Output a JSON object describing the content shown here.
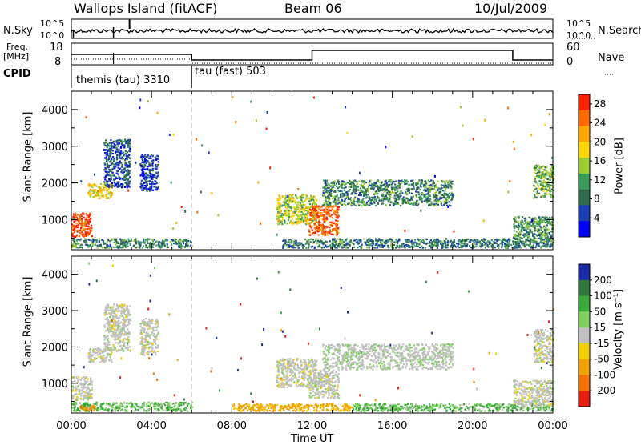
{
  "header": {
    "station": "Wallops Island (fitACF)",
    "beam": "Beam 06",
    "date": "10/Jul/2009"
  },
  "noise_panel": {
    "left_label": "N.Sky",
    "right_label": "N.Search",
    "left_ticks": [
      "10^5",
      "10^0"
    ],
    "right_ticks": [
      "10^5",
      "10^0"
    ]
  },
  "freq_panel": {
    "left_label_1": "Freq.",
    "left_label_2": "[MHz]",
    "right_label": "Nave",
    "left_ticks": [
      "18",
      "8"
    ],
    "right_ticks": [
      "60",
      "0"
    ]
  },
  "cpid_panel": {
    "label": "CPID",
    "modes": [
      {
        "name": "themis (tau) 3310",
        "start_hour": 0,
        "end_hour": 6
      },
      {
        "name": "tau (fast) 503",
        "start_hour": 6,
        "end_hour": 24
      }
    ]
  },
  "colors": {
    "power_scale": [
      "#0000ff",
      "#1a3fb5",
      "#2e6b4e",
      "#3a9a5a",
      "#9acd32",
      "#ffd700",
      "#ffa500",
      "#ff6a00",
      "#ff2200"
    ],
    "velocity_scale": [
      "#1a2aa8",
      "#2e7a3a",
      "#39a93a",
      "#7ed15e",
      "#c0c0c0",
      "#f0d000",
      "#f0a000",
      "#f07000",
      "#e81f10"
    ]
  },
  "chart_data": [
    {
      "type": "heatmap",
      "title": "",
      "xlabel": "Time UT",
      "ylabel": "Slant Range [km]",
      "xlim": [
        0,
        24
      ],
      "ylim": [
        180,
        4500
      ],
      "x_tick_labels": [
        "00:00",
        "04:00",
        "08:00",
        "12:00",
        "16:00",
        "20:00",
        "00:00"
      ],
      "y_tick_labels": [
        "1000",
        "2000",
        "3000",
        "4000"
      ],
      "colorbar": {
        "label": "Power [dB]",
        "range": [
          0,
          30
        ],
        "tick_labels": [
          "4",
          "8",
          "12",
          "16",
          "20",
          "24",
          "28"
        ]
      },
      "echo_regions": [
        {
          "t0": 0.0,
          "t1": 1.0,
          "r0": 550,
          "r1": 1200,
          "value": 27
        },
        {
          "t0": 0.0,
          "t1": 6.0,
          "r0": 250,
          "r1": 500,
          "value": 10
        },
        {
          "t0": 0.8,
          "t1": 2.0,
          "r0": 1600,
          "r1": 2000,
          "value": 19
        },
        {
          "t0": 1.6,
          "t1": 2.9,
          "r0": 1900,
          "r1": 3200,
          "value": 6
        },
        {
          "t0": 3.4,
          "t1": 4.3,
          "r0": 1800,
          "r1": 2800,
          "value": 5
        },
        {
          "t0": 10.2,
          "t1": 12.2,
          "r0": 900,
          "r1": 1700,
          "value": 16
        },
        {
          "t0": 11.8,
          "t1": 13.3,
          "r0": 600,
          "r1": 1400,
          "value": 26
        },
        {
          "t0": 12.5,
          "t1": 19.0,
          "r0": 1400,
          "r1": 2100,
          "value": 10
        },
        {
          "t0": 10.5,
          "t1": 24.0,
          "r0": 250,
          "r1": 500,
          "value": 9
        },
        {
          "t0": 22.0,
          "t1": 24.0,
          "r0": 400,
          "r1": 1100,
          "value": 11
        },
        {
          "t0": 23.0,
          "t1": 24.0,
          "r0": 1600,
          "r1": 2500,
          "value": 13
        }
      ]
    },
    {
      "type": "heatmap",
      "title": "",
      "xlabel": "Time UT",
      "ylabel": "Slant Range [km]",
      "xlim": [
        0,
        24
      ],
      "ylim": [
        180,
        4500
      ],
      "x_tick_labels": [
        "00:00",
        "04:00",
        "08:00",
        "12:00",
        "16:00",
        "20:00",
        "00:00"
      ],
      "y_tick_labels": [
        "1000",
        "2000",
        "3000",
        "4000"
      ],
      "colorbar": {
        "label": "Velocity [m s⁻¹]",
        "range": [
          -250,
          250
        ],
        "tick_labels": [
          "200",
          "100",
          "50",
          "15",
          "-15",
          "-50",
          "-100",
          "-200"
        ]
      },
      "echo_regions": [
        {
          "t0": 0.0,
          "t1": 1.0,
          "r0": 550,
          "r1": 1200,
          "value": 0
        },
        {
          "t0": 0.0,
          "t1": 6.0,
          "r0": 250,
          "r1": 500,
          "value": 30
        },
        {
          "t0": 0.4,
          "t1": 1.2,
          "r0": 250,
          "r1": 400,
          "value": -60
        },
        {
          "t0": 0.8,
          "t1": 2.0,
          "r0": 1600,
          "r1": 2000,
          "value": 0
        },
        {
          "t0": 1.6,
          "t1": 2.9,
          "r0": 1900,
          "r1": 3200,
          "value": 0
        },
        {
          "t0": 3.4,
          "t1": 4.3,
          "r0": 1800,
          "r1": 2800,
          "value": 0
        },
        {
          "t0": 10.2,
          "t1": 12.2,
          "r0": 900,
          "r1": 1700,
          "value": 0
        },
        {
          "t0": 11.8,
          "t1": 13.3,
          "r0": 600,
          "r1": 1400,
          "value": 0
        },
        {
          "t0": 12.5,
          "t1": 19.0,
          "r0": 1400,
          "r1": 2100,
          "value": 5
        },
        {
          "t0": 8.0,
          "t1": 14.0,
          "r0": 250,
          "r1": 450,
          "value": -40
        },
        {
          "t0": 14.0,
          "t1": 24.0,
          "r0": 250,
          "r1": 450,
          "value": 30
        },
        {
          "t0": 22.0,
          "t1": 24.0,
          "r0": 400,
          "r1": 1100,
          "value": 0
        },
        {
          "t0": 23.0,
          "t1": 24.0,
          "r0": 1600,
          "r1": 2500,
          "value": 0
        }
      ]
    }
  ]
}
